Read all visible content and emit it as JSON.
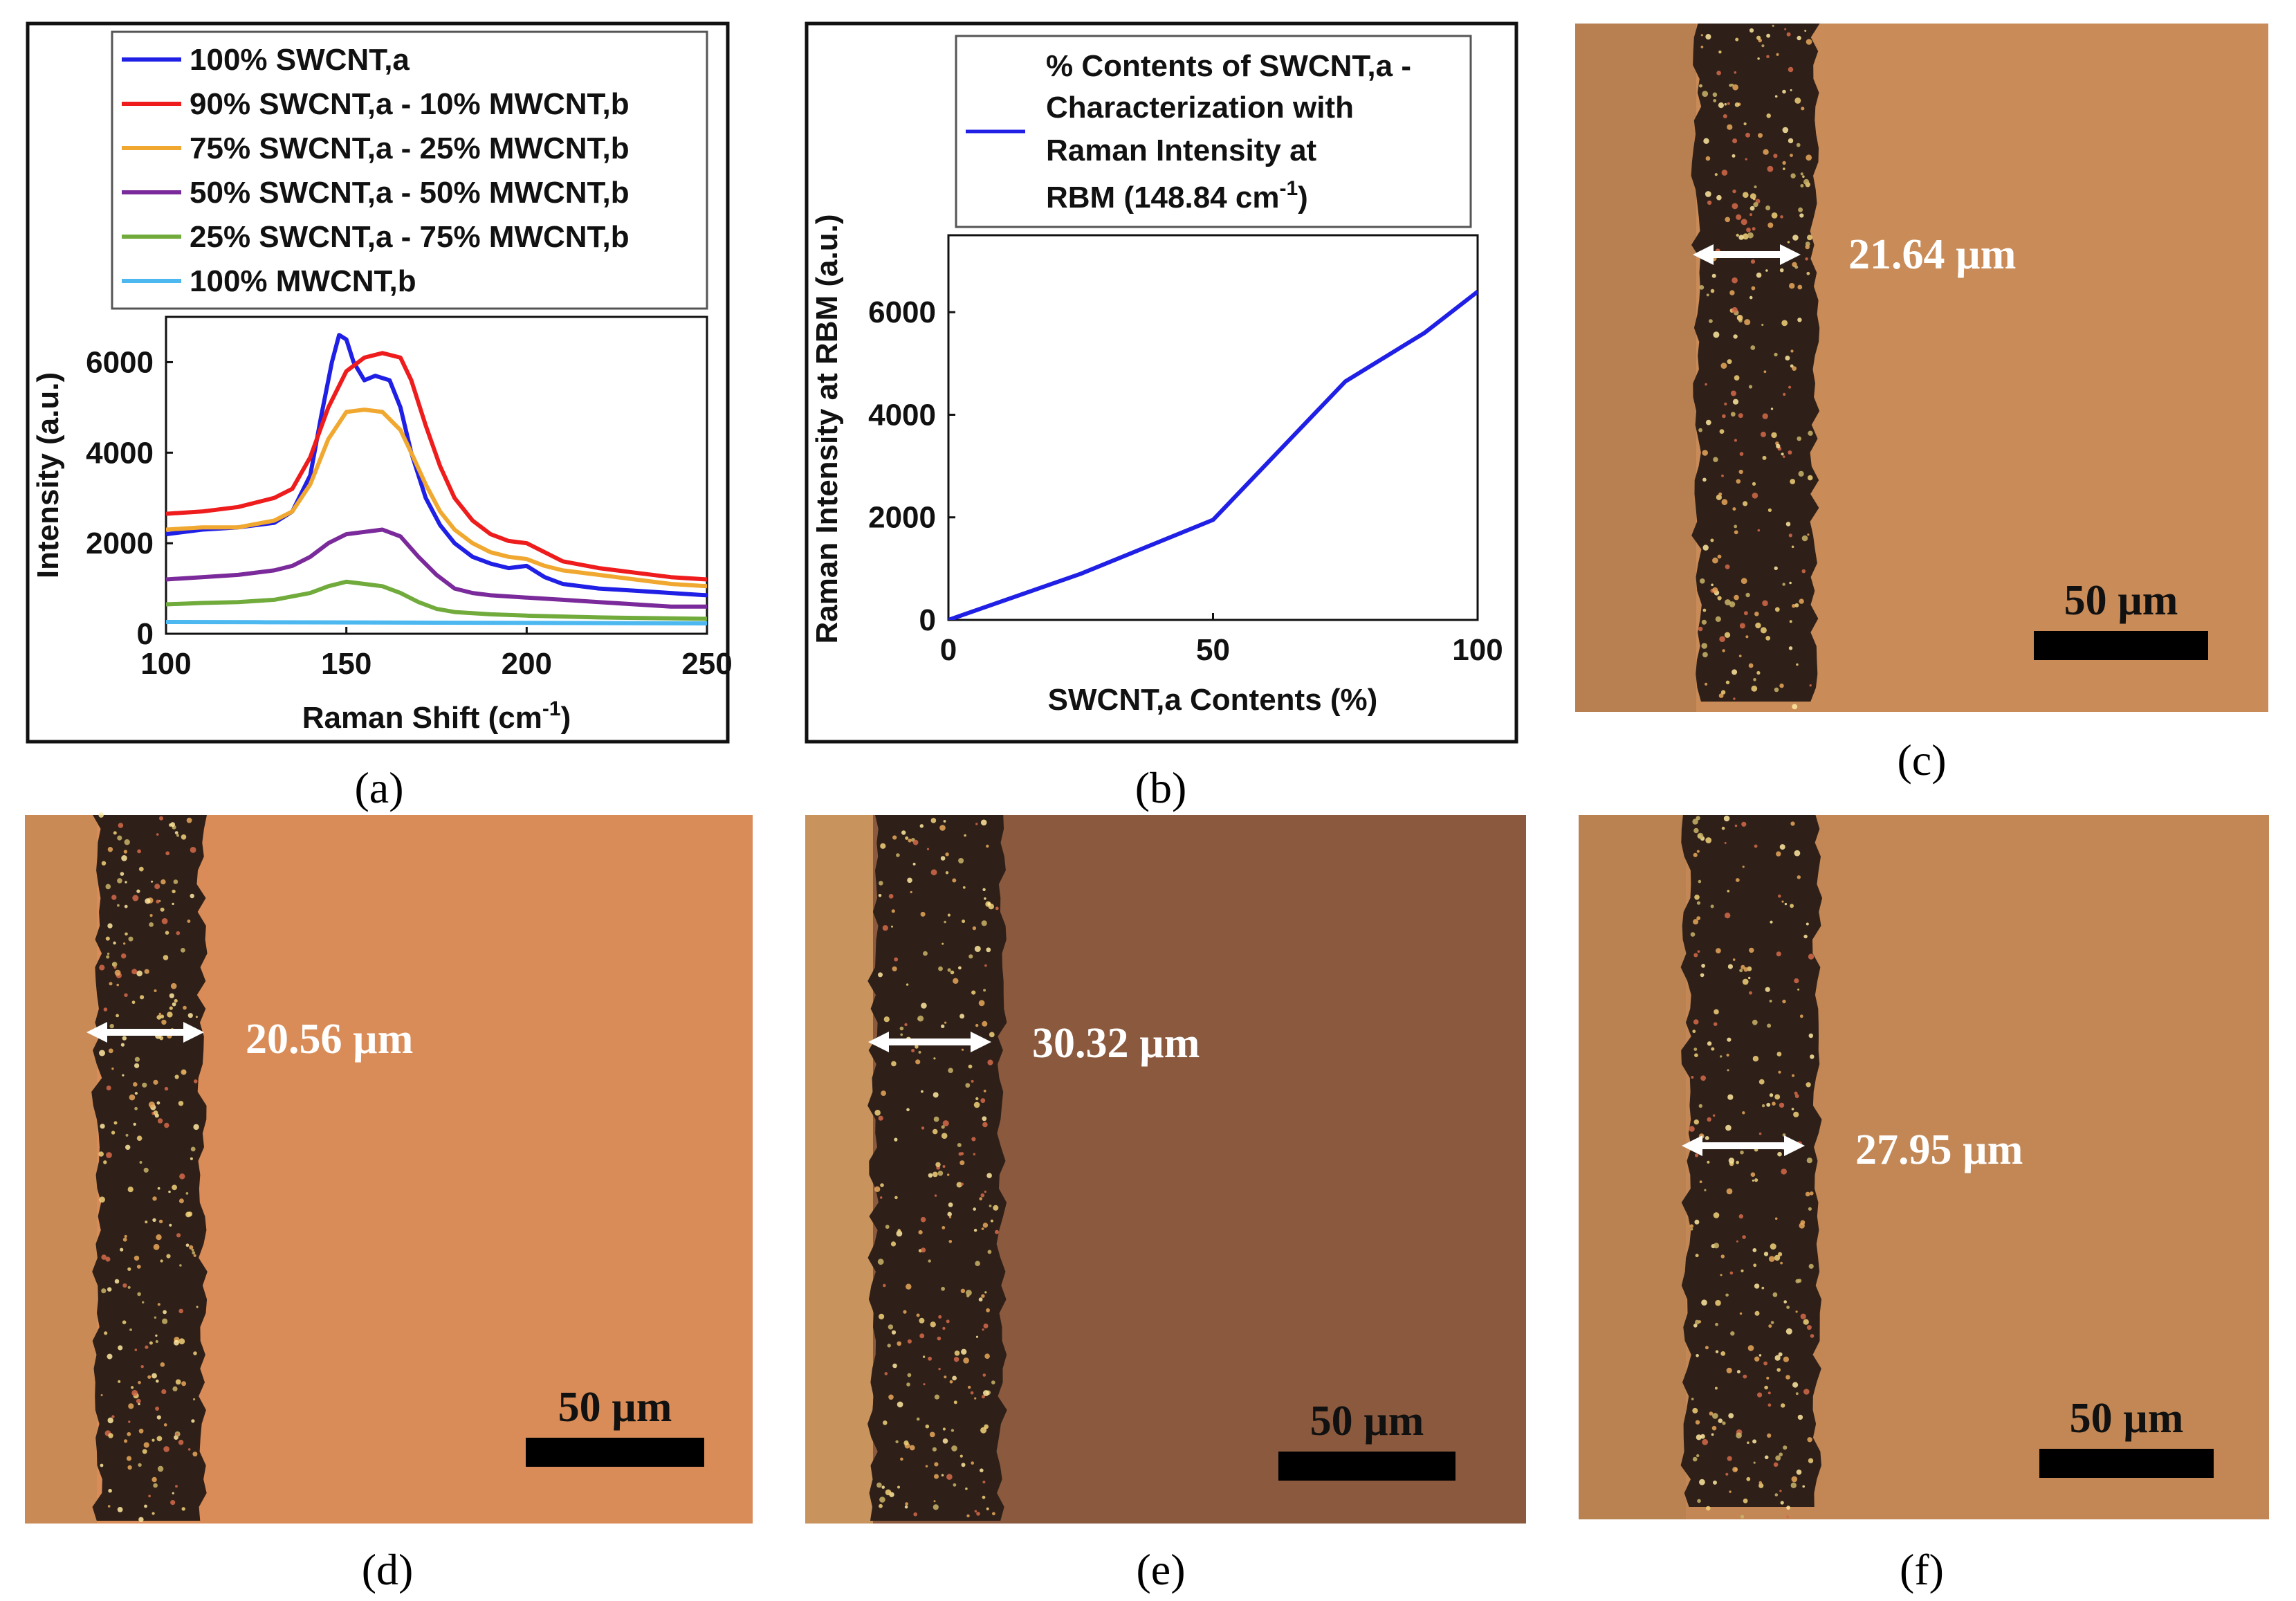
{
  "chart_data": [
    {
      "panel": "a",
      "type": "line",
      "xlabel": "Raman Shift (cm",
      "xlabel_sup": "-1",
      "xlabel_end": ")",
      "ylabel": "Intensity (a.u.)",
      "xlim": [
        100,
        250
      ],
      "ylim": [
        0,
        7000
      ],
      "xticks": [
        100,
        150,
        200,
        250
      ],
      "yticks": [
        0,
        2000,
        4000,
        6000
      ],
      "legend_position": "top",
      "series": [
        {
          "name": "100% SWCNT,a",
          "color": "#1f1fe6",
          "x": [
            100,
            110,
            120,
            130,
            135,
            140,
            143,
            146,
            148,
            150,
            152,
            155,
            158,
            162,
            165,
            168,
            172,
            176,
            180,
            185,
            190,
            195,
            200,
            205,
            210,
            220,
            230,
            240,
            250
          ],
          "y": [
            2200,
            2300,
            2350,
            2450,
            2700,
            3500,
            4800,
            6000,
            6600,
            6500,
            6000,
            5600,
            5700,
            5600,
            5000,
            4000,
            3000,
            2400,
            2000,
            1700,
            1550,
            1450,
            1500,
            1250,
            1100,
            1000,
            950,
            900,
            850
          ]
        },
        {
          "name": "90% SWCNT,a - 10% MWCNT,b",
          "color": "#ee1c1c",
          "x": [
            100,
            110,
            120,
            130,
            135,
            140,
            145,
            150,
            155,
            160,
            165,
            168,
            172,
            176,
            180,
            185,
            190,
            195,
            200,
            205,
            210,
            220,
            230,
            240,
            250
          ],
          "y": [
            2650,
            2700,
            2800,
            3000,
            3200,
            3900,
            5000,
            5800,
            6100,
            6200,
            6100,
            5600,
            4600,
            3700,
            3000,
            2500,
            2200,
            2050,
            2000,
            1800,
            1600,
            1450,
            1350,
            1250,
            1200
          ]
        },
        {
          "name": "75% SWCNT,a - 25% MWCNT,b",
          "color": "#f0a830",
          "x": [
            100,
            110,
            120,
            130,
            135,
            140,
            145,
            150,
            155,
            160,
            165,
            168,
            172,
            176,
            180,
            185,
            190,
            195,
            200,
            205,
            210,
            220,
            230,
            240,
            250
          ],
          "y": [
            2300,
            2350,
            2350,
            2500,
            2700,
            3300,
            4300,
            4900,
            4950,
            4900,
            4500,
            4000,
            3300,
            2700,
            2300,
            2000,
            1800,
            1700,
            1650,
            1500,
            1400,
            1300,
            1200,
            1100,
            1050
          ]
        },
        {
          "name": "50% SWCNT,a - 50% MWCNT,b",
          "color": "#7a2a9a",
          "x": [
            100,
            110,
            120,
            130,
            135,
            140,
            145,
            150,
            155,
            160,
            165,
            170,
            175,
            180,
            185,
            190,
            200,
            210,
            220,
            230,
            240,
            250
          ],
          "y": [
            1200,
            1250,
            1300,
            1400,
            1500,
            1700,
            2000,
            2200,
            2250,
            2300,
            2150,
            1700,
            1300,
            1000,
            900,
            850,
            800,
            750,
            700,
            650,
            600,
            600
          ]
        },
        {
          "name": "25% SWCNT,a - 75% MWCNT,b",
          "color": "#70ab3c",
          "x": [
            100,
            110,
            120,
            130,
            140,
            145,
            150,
            155,
            160,
            165,
            170,
            175,
            180,
            190,
            200,
            210,
            220,
            230,
            240,
            250
          ],
          "y": [
            650,
            680,
            700,
            750,
            900,
            1050,
            1150,
            1100,
            1050,
            900,
            700,
            550,
            480,
            430,
            400,
            380,
            360,
            350,
            340,
            330
          ]
        },
        {
          "name": "100% MWCNT,b",
          "color": "#4db8f0",
          "x": [
            100,
            125,
            150,
            175,
            200,
            225,
            250
          ],
          "y": [
            260,
            255,
            250,
            245,
            240,
            235,
            230
          ]
        }
      ]
    },
    {
      "panel": "b",
      "type": "line",
      "xlabel": "SWCNT,a Contents (%)",
      "ylabel": "Raman Intensity at RBM (a.u.)",
      "xlim": [
        0,
        100
      ],
      "ylim": [
        0,
        7500
      ],
      "xticks": [
        0,
        50,
        100
      ],
      "yticks": [
        0,
        2000,
        4000,
        6000
      ],
      "legend_position": "top",
      "series": [
        {
          "name": "% Contents of SWCNT,a - Characterization with Raman Intensity at RBM (148.84 cm-1)",
          "color": "#1f1fe6",
          "x": [
            0,
            25,
            50,
            75,
            90,
            100
          ],
          "y": [
            0,
            900,
            1950,
            4650,
            5600,
            6400
          ]
        }
      ]
    }
  ],
  "legend_b": {
    "line1": "% Contents of SWCNT,a -",
    "line2": "Characterization with",
    "line3": "Raman Intensity at",
    "line4_main": "RBM (148.84 cm",
    "line4_sup": "-1",
    "line4_end": ")"
  },
  "micrographs": {
    "c": {
      "width_label": "21.64 µm",
      "scale_label": "50 µm",
      "bg": "#c98b58",
      "line_left": "#b88050"
    },
    "d": {
      "width_label": "20.56 µm",
      "scale_label": "50 µm",
      "bg": "#d98c57",
      "line_left": "#c98a55"
    },
    "e": {
      "width_label": "30.32 µm",
      "scale_label": "50 µm",
      "bg": "#8b5a3e",
      "line_left": "#c9935e"
    },
    "f": {
      "width_label": "27.95 µm",
      "scale_label": "50 µm",
      "bg": "#c28755",
      "line_left": "#b98250"
    }
  },
  "captions": {
    "a": "(a)",
    "b": "(b)",
    "c": "(c)",
    "d": "(d)",
    "e": "(e)",
    "f": "(f)"
  }
}
